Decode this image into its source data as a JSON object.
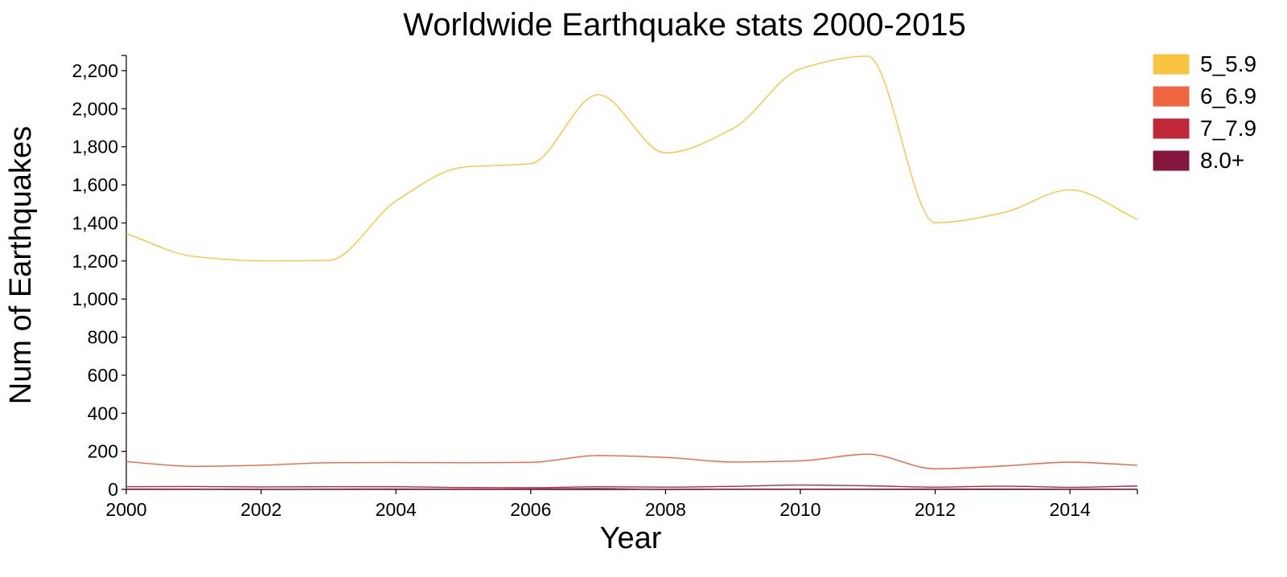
{
  "chart_data": {
    "type": "line",
    "title": "Worldwide Earthquake stats 2000-2015",
    "xlabel": "Year",
    "ylabel": "Num of Earthquakes",
    "x": [
      2000,
      2001,
      2002,
      2003,
      2004,
      2005,
      2006,
      2007,
      2008,
      2009,
      2010,
      2011,
      2012,
      2013,
      2014,
      2015
    ],
    "xlim": [
      2000,
      2015
    ],
    "ylim": [
      0,
      2280
    ],
    "x_ticks": [
      "2000",
      "2002",
      "2004",
      "2006",
      "2008",
      "2010",
      "2012",
      "2014"
    ],
    "y_ticks": [
      "0",
      "200",
      "400",
      "600",
      "800",
      "1,000",
      "1,200",
      "1,400",
      "1,600",
      "1,800",
      "2,000",
      "2,200"
    ],
    "grid": false,
    "legend_position": "top-right",
    "series": [
      {
        "name": "5_5.9",
        "color": "#f9c440",
        "values": [
          1344,
          1224,
          1201,
          1203,
          1515,
          1693,
          1712,
          2074,
          1768,
          1896,
          2209,
          2276,
          1401,
          1453,
          1574,
          1419
        ]
      },
      {
        "name": "6_6.9",
        "color": "#ee6540",
        "values": [
          146,
          121,
          127,
          140,
          141,
          140,
          142,
          178,
          168,
          144,
          150,
          185,
          108,
          123,
          143,
          127
        ]
      },
      {
        "name": "7_7.9",
        "color": "#c02739",
        "values": [
          14,
          15,
          13,
          14,
          14,
          10,
          9,
          14,
          12,
          16,
          23,
          19,
          12,
          17,
          11,
          18
        ]
      },
      {
        "name": "8.0+",
        "color": "#84163d",
        "values": [
          1,
          1,
          0,
          1,
          2,
          1,
          2,
          4,
          0,
          1,
          1,
          1,
          2,
          2,
          1,
          1
        ]
      }
    ]
  }
}
